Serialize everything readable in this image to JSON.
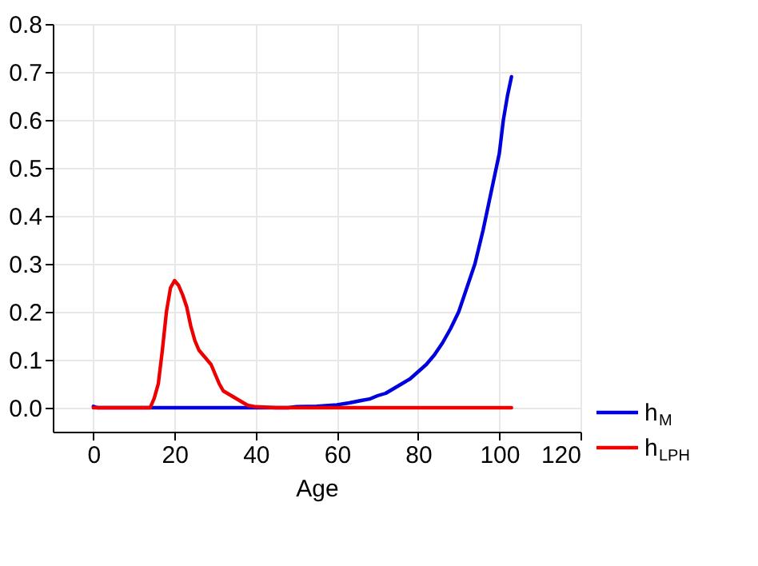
{
  "chart_data": {
    "type": "line",
    "xlabel": "Age",
    "xlim": [
      -10,
      120
    ],
    "xticks": [
      0,
      20,
      40,
      60,
      80,
      100,
      120
    ],
    "ylim": [
      -0.05,
      0.8
    ],
    "yticks": [
      {
        "value": 0,
        "label": "0.0"
      },
      0.1,
      0.2,
      0.3,
      0.4,
      0.5,
      0.6,
      0.7,
      0.8
    ],
    "grid": true,
    "legend": "bottom right",
    "line_style": "solid",
    "marker": "none",
    "series": [
      {
        "name": "h$_{M}$",
        "color": "#0000dd",
        "x": [
          0,
          1,
          10,
          20,
          30,
          40,
          48,
          50,
          55,
          60,
          63,
          66,
          68,
          70,
          72,
          74,
          76,
          78,
          80,
          82,
          84,
          86,
          88,
          90,
          92,
          94,
          96,
          98,
          100,
          101,
          102,
          103
        ],
        "values": [
          0.003,
          0,
          0,
          0,
          0,
          0,
          0,
          0.002,
          0.003,
          0.006,
          0.01,
          0.015,
          0.018,
          0.025,
          0.03,
          0.04,
          0.05,
          0.06,
          0.075,
          0.09,
          0.11,
          0.135,
          0.165,
          0.2,
          0.25,
          0.3,
          0.37,
          0.45,
          0.53,
          0.6,
          0.65,
          0.69
        ]
      },
      {
        "name": "h$_{LPH}$",
        "color": "#ee0000",
        "x": [
          0,
          14,
          15,
          16,
          17,
          18,
          19,
          20,
          21,
          22,
          23,
          24,
          25,
          26,
          27,
          28,
          29,
          30,
          31,
          32,
          34,
          36,
          38,
          40,
          45,
          103
        ],
        "values": [
          0,
          0,
          0.02,
          0.05,
          0.12,
          0.2,
          0.25,
          0.265,
          0.255,
          0.235,
          0.21,
          0.17,
          0.14,
          0.12,
          0.11,
          0.1,
          0.09,
          0.07,
          0.05,
          0.035,
          0.025,
          0.015,
          0.005,
          0.002,
          0,
          0
        ]
      }
    ]
  }
}
